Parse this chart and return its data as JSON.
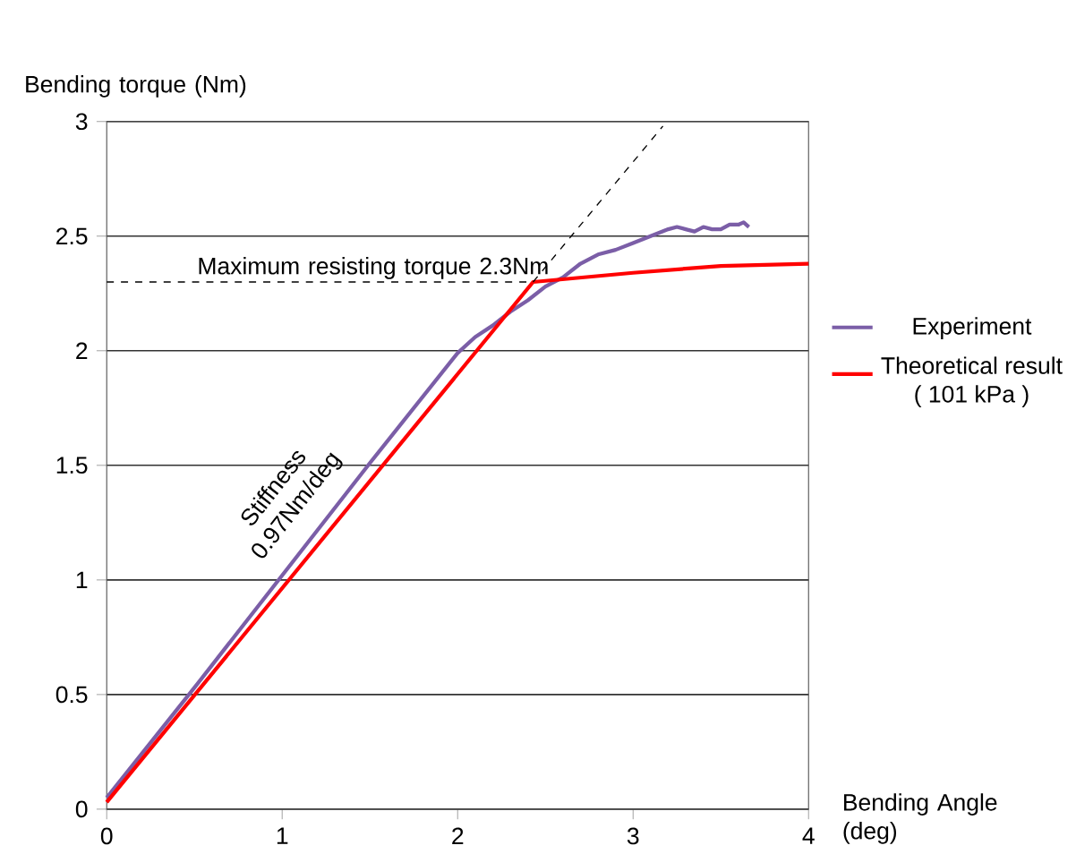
{
  "chart_data": {
    "type": "line",
    "xlabel": "Bending Angle (deg)",
    "ylabel": "Bending torque (Nm)",
    "xlim": [
      0,
      4
    ],
    "ylim": [
      0,
      3
    ],
    "xticks": [
      0,
      1,
      2,
      3,
      4
    ],
    "yticks": [
      0,
      0.5,
      1,
      1.5,
      2,
      2.5,
      3
    ],
    "grid": "y",
    "legend": "right",
    "marker": "none",
    "annotations": [
      "Maximum resisting torque 2.3Nm",
      "Stiffness 0.97Nm/deg"
    ],
    "series": [
      {
        "name": "Experiment",
        "color": "#7b5ea7",
        "line_style": "solid",
        "x": [
          0,
          0.5,
          1,
          1.5,
          2,
          2.1,
          2.2,
          2.3,
          2.4,
          2.5,
          2.6,
          2.7,
          2.8,
          2.9,
          3.0,
          3.1,
          3.2,
          3.25,
          3.3,
          3.35,
          3.4,
          3.45,
          3.5,
          3.55,
          3.6,
          3.63,
          3.66
        ],
        "values": [
          0.05,
          0.53,
          1.02,
          1.51,
          1.99,
          2.06,
          2.11,
          2.17,
          2.22,
          2.28,
          2.32,
          2.38,
          2.42,
          2.44,
          2.47,
          2.5,
          2.53,
          2.54,
          2.53,
          2.52,
          2.54,
          2.53,
          2.53,
          2.55,
          2.55,
          2.56,
          2.54
        ]
      },
      {
        "name": "Theoretical result ( 101 kPa )",
        "color": "#ff0000",
        "line_style": "solid",
        "x": [
          0,
          2.43,
          3,
          3.5,
          4
        ],
        "values": [
          0.03,
          2.3,
          2.34,
          2.37,
          2.38
        ]
      },
      {
        "color": "#000000",
        "line_style": "dashed",
        "x": [
          0,
          2.43
        ],
        "values": [
          2.3,
          2.3
        ]
      },
      {
        "color": "#000000",
        "line_style": "dashed",
        "x": [
          2.43,
          3.17
        ],
        "values": [
          2.3,
          2.98
        ]
      }
    ]
  }
}
